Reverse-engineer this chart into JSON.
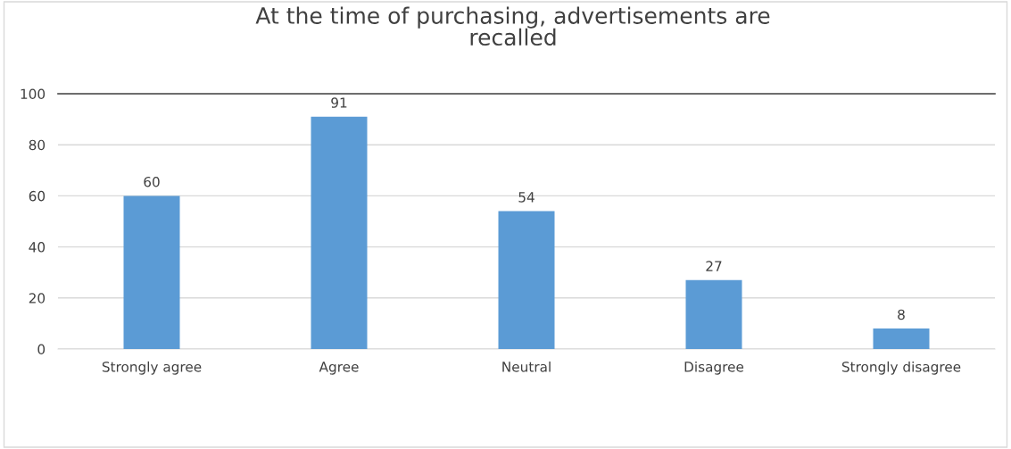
{
  "chart_data": {
    "type": "bar",
    "title": "At the time of purchasing, advertisements are\nrecalled",
    "categories": [
      "Strongly agree",
      "Agree",
      "Neutral",
      "Disagree",
      "Strongly disagree"
    ],
    "values": [
      60,
      91,
      54,
      27,
      8
    ],
    "color": "#5b9bd5",
    "ylim": [
      0,
      100
    ],
    "yticks": [
      0,
      20,
      40,
      60,
      80,
      100
    ],
    "grid": "y",
    "data_labels": true
  }
}
